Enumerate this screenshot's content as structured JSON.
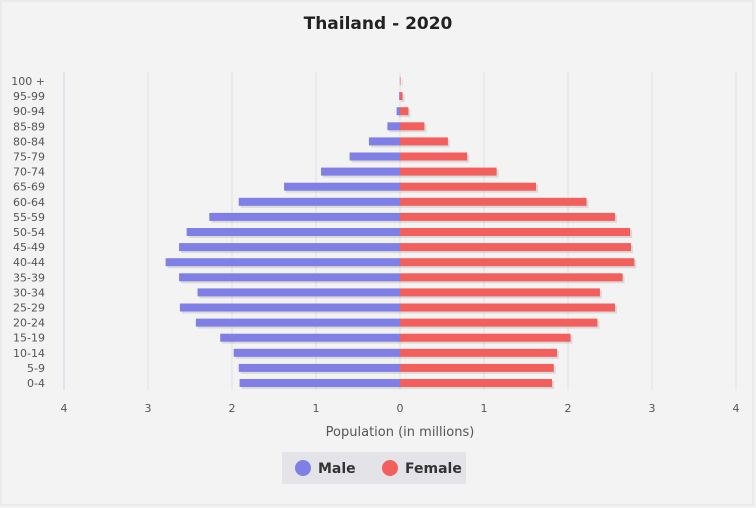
{
  "chart_data": {
    "type": "bar",
    "title": "Thailand - 2020",
    "xlabel": "Population (in millions)",
    "ylabel": "",
    "xlim": [
      -4,
      4
    ],
    "x_ticks": [
      "4",
      "3",
      "2",
      "1",
      "0",
      "1",
      "2",
      "3",
      "4"
    ],
    "categories": [
      "100 +",
      "95-99",
      "90-94",
      "85-89",
      "80-84",
      "75-79",
      "70-74",
      "65-69",
      "60-64",
      "55-59",
      "50-54",
      "45-49",
      "40-44",
      "35-39",
      "30-34",
      "25-29",
      "20-24",
      "15-19",
      "10-14",
      "5-9",
      "0-4"
    ],
    "series": [
      {
        "name": "Male",
        "color": "#7f7fe6",
        "values": [
          0.002,
          0.01,
          0.04,
          0.15,
          0.37,
          0.6,
          0.94,
          1.38,
          1.92,
          2.27,
          2.54,
          2.63,
          2.79,
          2.63,
          2.41,
          2.62,
          2.43,
          2.14,
          1.98,
          1.92,
          1.91
        ]
      },
      {
        "name": "Female",
        "color": "#f25f5c",
        "values": [
          0.006,
          0.03,
          0.1,
          0.29,
          0.57,
          0.8,
          1.15,
          1.62,
          2.22,
          2.56,
          2.74,
          2.75,
          2.79,
          2.65,
          2.38,
          2.56,
          2.35,
          2.03,
          1.87,
          1.83,
          1.81
        ]
      }
    ],
    "grid": true,
    "legend_position": "bottom-center"
  },
  "legend": [
    {
      "label": "Male",
      "color": "#7f7fe6"
    },
    {
      "label": "Female",
      "color": "#f25f5c"
    }
  ]
}
